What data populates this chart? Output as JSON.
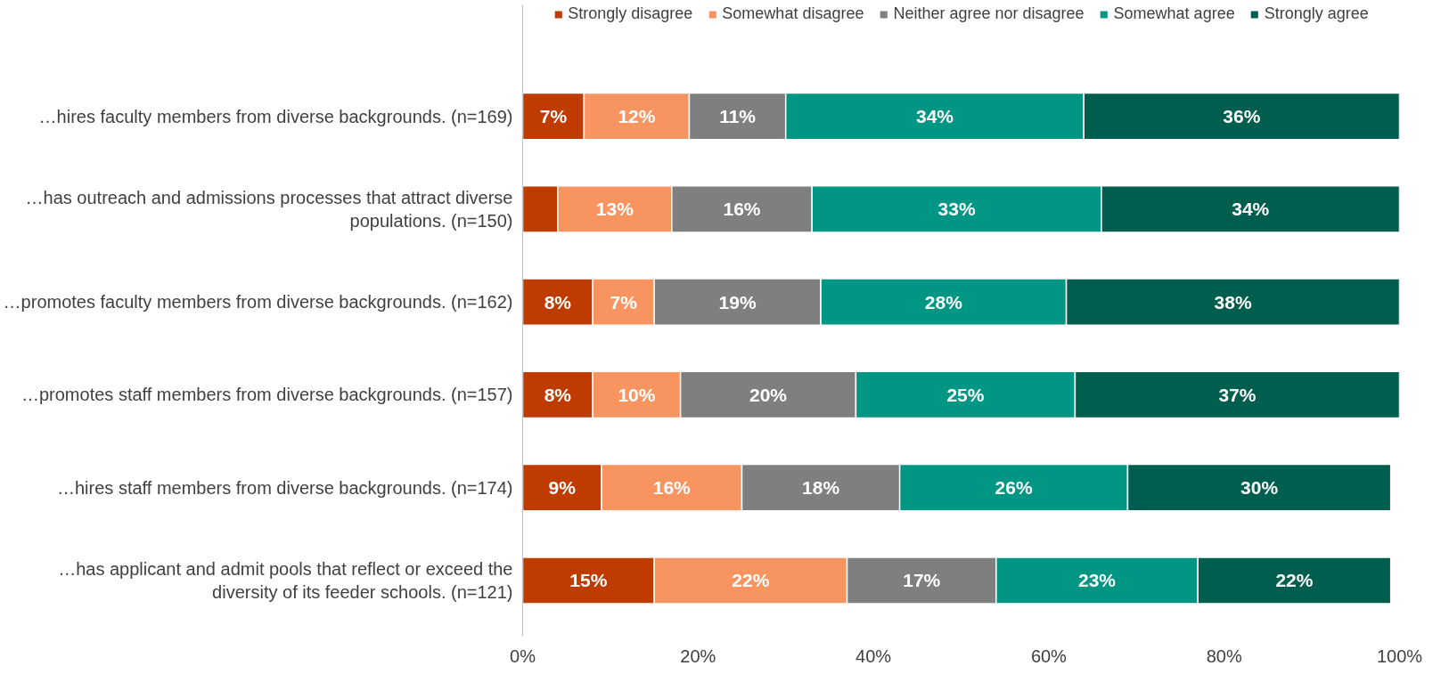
{
  "chart_data": {
    "type": "bar",
    "orientation": "horizontal",
    "stacked": true,
    "legend": "top",
    "grid": false,
    "categories": [
      "…hires faculty members from diverse backgrounds. (n=169)",
      "…has outreach and admissions processes that attract diverse populations. (n=150)",
      "…promotes faculty members from diverse backgrounds. (n=162)",
      "…promotes staff members from diverse backgrounds. (n=157)",
      "…hires staff members from diverse backgrounds. (n=174)",
      "…has applicant and admit pools that reflect or exceed the diversity of its feeder schools. (n=121)"
    ],
    "xlim": [
      0,
      100
    ],
    "xticks": [
      {
        "value": 0,
        "label": "0%"
      },
      {
        "value": 20,
        "label": "20%"
      },
      {
        "value": 40,
        "label": "40%"
      },
      {
        "value": 60,
        "label": "60%"
      },
      {
        "value": 80,
        "label": "80%"
      },
      {
        "value": 100,
        "label": "100%"
      }
    ],
    "series": [
      {
        "name": "Strongly disagree",
        "color": "#bf3b00",
        "values": [
          7,
          4,
          8,
          8,
          9,
          15
        ],
        "value_labels": [
          "7%",
          null,
          "8%",
          "8%",
          "9%",
          "15%"
        ]
      },
      {
        "name": "Somewhat disagree",
        "color": "#f7945f",
        "values": [
          12,
          13,
          7,
          10,
          16,
          22
        ],
        "value_labels": [
          "12%",
          "13%",
          "7%",
          "10%",
          "16%",
          "22%"
        ]
      },
      {
        "name": "Neither agree nor disagree",
        "color": "#7f7f7f",
        "values": [
          11,
          16,
          19,
          20,
          18,
          17
        ],
        "value_labels": [
          "11%",
          "16%",
          "19%",
          "20%",
          "18%",
          "17%"
        ]
      },
      {
        "name": "Somewhat agree",
        "color": "#009684",
        "values": [
          34,
          33,
          28,
          25,
          26,
          23
        ],
        "value_labels": [
          "34%",
          "33%",
          "28%",
          "25%",
          "26%",
          "23%"
        ]
      },
      {
        "name": "Strongly agree",
        "color": "#005e4e",
        "values": [
          36,
          34,
          38,
          37,
          30,
          22
        ],
        "value_labels": [
          "36%",
          "34%",
          "38%",
          "37%",
          "30%",
          "22%"
        ]
      }
    ]
  }
}
